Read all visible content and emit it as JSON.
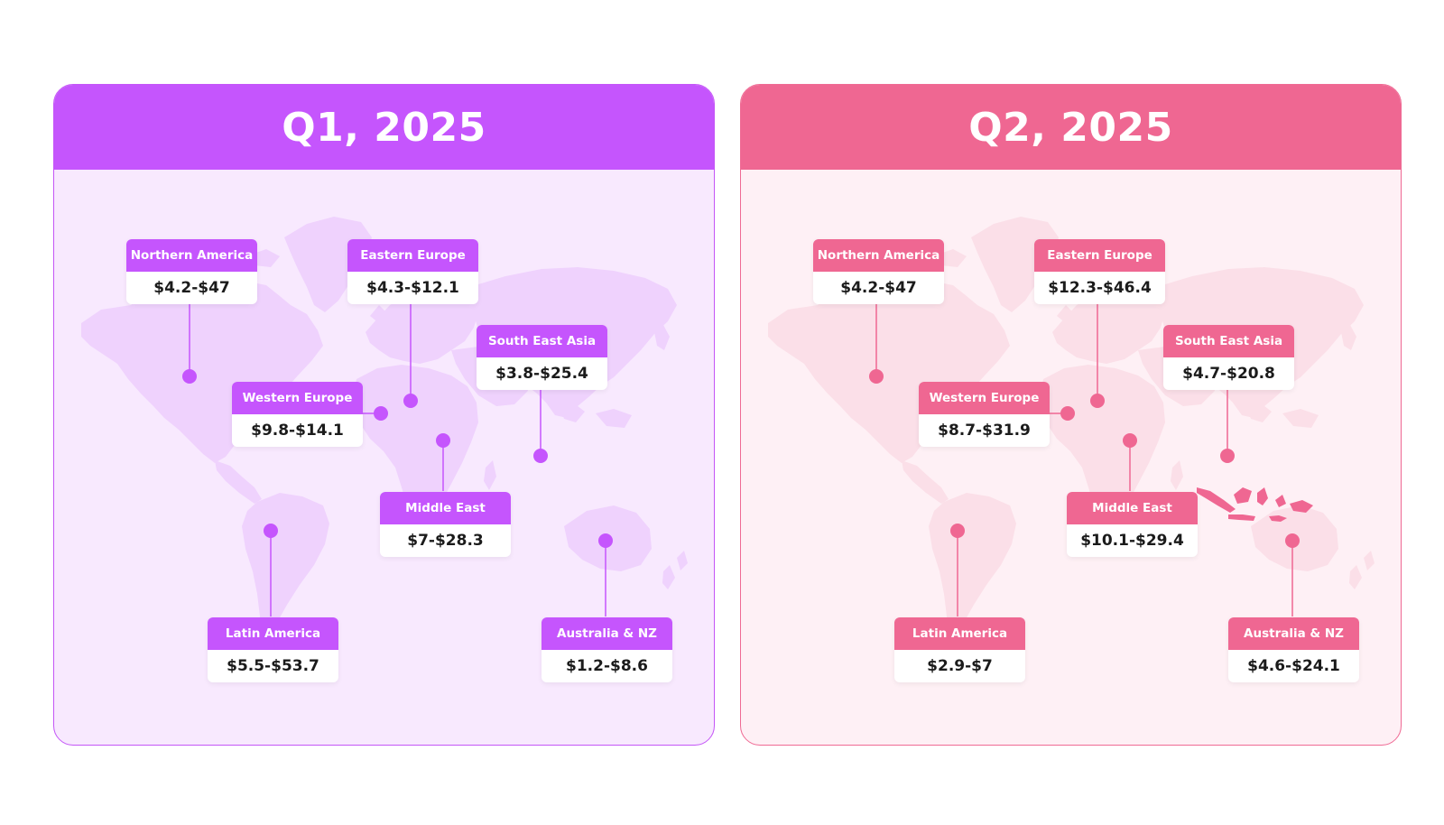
{
  "colors": {
    "q1_accent": "#c555fd",
    "q1_background": "#f8e9fe",
    "q1_land": "#efd2fd",
    "q2_accent": "#ef6792",
    "q2_background": "#fef0f5",
    "q2_land": "#fbdfe8",
    "q2_highlight_land": "#ef6792"
  },
  "panels": [
    {
      "title": "Q1, 2025",
      "regions": [
        {
          "name": "Northern America",
          "range": "$4.2-$47"
        },
        {
          "name": "Eastern Europe",
          "range": "$4.3-$12.1"
        },
        {
          "name": "South East Asia",
          "range": "$3.8-$25.4"
        },
        {
          "name": "Western Europe",
          "range": "$9.8-$14.1"
        },
        {
          "name": "Middle East",
          "range": "$7-$28.3"
        },
        {
          "name": "Latin America",
          "range": "$5.5-$53.7"
        },
        {
          "name": "Australia & NZ",
          "range": "$1.2-$8.6"
        }
      ]
    },
    {
      "title": "Q2, 2025",
      "highlighted_area": "Indonesia",
      "regions": [
        {
          "name": "Northern America",
          "range": "$4.2-$47"
        },
        {
          "name": "Eastern Europe",
          "range": "$12.3-$46.4"
        },
        {
          "name": "South East Asia",
          "range": "$4.7-$20.8"
        },
        {
          "name": "Western Europe",
          "range": "$8.7-$31.9"
        },
        {
          "name": "Middle East",
          "range": "$10.1-$29.4"
        },
        {
          "name": "Latin America",
          "range": "$2.9-$7"
        },
        {
          "name": "Australia & NZ",
          "range": "$4.6-$24.1"
        }
      ]
    }
  ]
}
